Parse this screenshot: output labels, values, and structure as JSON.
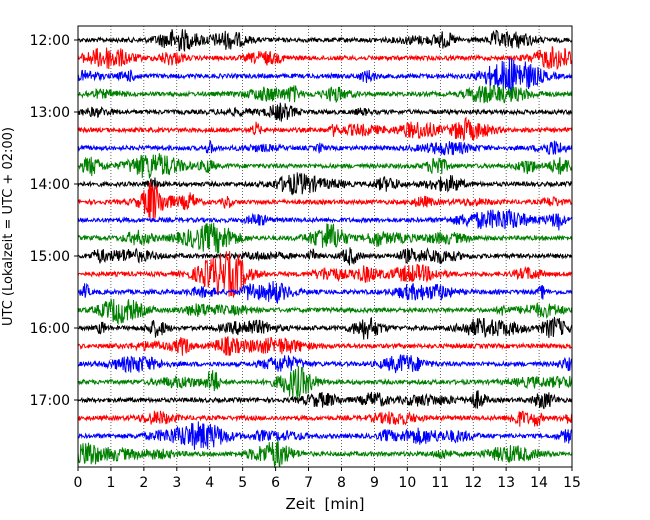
{
  "chart_data": {
    "type": "line",
    "title": "",
    "xlabel": "Zeit  [min]",
    "ylabel": "UTC (Lokalzeit = UTC + 02:00)",
    "xlim": [
      0,
      15
    ],
    "x_ticks": [
      0,
      1,
      2,
      3,
      4,
      5,
      6,
      7,
      8,
      9,
      10,
      11,
      12,
      13,
      14,
      15
    ],
    "y_tick_labels": [
      "12:00",
      "13:00",
      "14:00",
      "15:00",
      "16:00",
      "17:00"
    ],
    "y_tick_rows": [
      0,
      4,
      8,
      12,
      16,
      20
    ],
    "grid": "vertical dotted",
    "trace_colors": [
      "#000000",
      "#ff0000",
      "#0000ff",
      "#008000"
    ],
    "row_count": 24,
    "minutes_per_row": 15,
    "start_time": "12:00"
  }
}
